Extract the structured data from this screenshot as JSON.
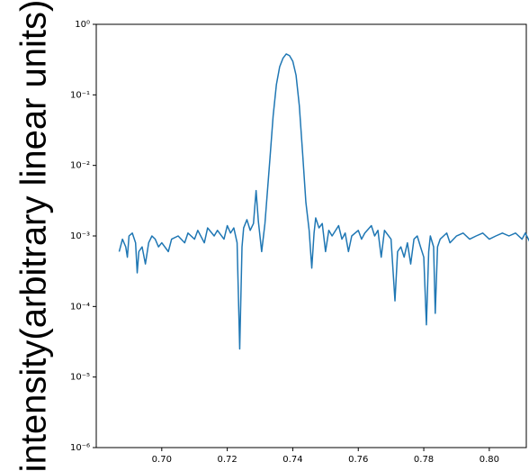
{
  "chart_data": {
    "type": "line",
    "y_label": "intensity(arbitrary linear units)",
    "log_y": true,
    "color": "#1f77b4",
    "xlim": [
      0.68,
      0.8113
    ],
    "ylim": [
      1e-06,
      1
    ],
    "xticks": [
      {
        "value": 0.7,
        "label": "0.70"
      },
      0.72,
      0.74,
      0.76,
      0.78,
      {
        "value": 0.8,
        "label": "0.80"
      }
    ],
    "yticks": [
      {
        "value": 1e-06,
        "label": "10⁻⁶"
      },
      {
        "value": 1e-05,
        "label": "10⁻⁵"
      },
      {
        "value": 0.0001,
        "label": "10⁻⁴"
      },
      {
        "value": 0.001,
        "label": "10⁻³"
      },
      {
        "value": 0.01,
        "label": "10⁻²"
      },
      {
        "value": 0.1,
        "label": "10⁻¹"
      },
      {
        "value": 1,
        "label": "10⁰"
      }
    ],
    "x": [
      0.687,
      0.688,
      0.689,
      0.6895,
      0.69,
      0.691,
      0.692,
      0.6925,
      0.693,
      0.694,
      0.695,
      0.696,
      0.697,
      0.698,
      0.699,
      0.7,
      0.702,
      0.703,
      0.705,
      0.707,
      0.708,
      0.71,
      0.711,
      0.713,
      0.714,
      0.716,
      0.717,
      0.719,
      0.72,
      0.721,
      0.722,
      0.723,
      0.7238,
      0.7245,
      0.725,
      0.726,
      0.727,
      0.728,
      0.7288,
      0.7295,
      0.7305,
      0.7315,
      0.733,
      0.734,
      0.735,
      0.736,
      0.737,
      0.738,
      0.739,
      0.74,
      0.741,
      0.742,
      0.743,
      0.744,
      0.745,
      0.7458,
      0.7465,
      0.747,
      0.748,
      0.749,
      0.75,
      0.751,
      0.752,
      0.754,
      0.755,
      0.756,
      0.757,
      0.758,
      0.76,
      0.761,
      0.762,
      0.764,
      0.765,
      0.766,
      0.767,
      0.768,
      0.77,
      0.7712,
      0.772,
      0.773,
      0.774,
      0.775,
      0.776,
      0.777,
      0.778,
      0.779,
      0.78,
      0.7808,
      0.7815,
      0.782,
      0.783,
      0.7835,
      0.7842,
      0.785,
      0.787,
      0.788,
      0.79,
      0.792,
      0.794,
      0.796,
      0.798,
      0.8,
      0.802,
      0.804,
      0.806,
      0.808,
      0.81,
      0.811,
      0.8125
    ],
    "values": [
      0.0006,
      0.0009,
      0.0007,
      0.0005,
      0.001,
      0.0011,
      0.0008,
      0.0003,
      0.0006,
      0.0007,
      0.0004,
      0.0008,
      0.001,
      0.0009,
      0.0007,
      0.0008,
      0.0006,
      0.0009,
      0.001,
      0.0008,
      0.0011,
      0.0009,
      0.0012,
      0.0008,
      0.0013,
      0.001,
      0.0012,
      0.0009,
      0.0014,
      0.0011,
      0.0013,
      0.0008,
      2.5e-05,
      0.0007,
      0.0013,
      0.0017,
      0.0012,
      0.0015,
      0.0044,
      0.0016,
      0.0006,
      0.0015,
      0.012,
      0.05,
      0.14,
      0.25,
      0.33,
      0.38,
      0.36,
      0.3,
      0.19,
      0.07,
      0.015,
      0.003,
      0.0012,
      0.00035,
      0.0011,
      0.0018,
      0.0013,
      0.0015,
      0.0006,
      0.0012,
      0.001,
      0.0014,
      0.0009,
      0.0011,
      0.0006,
      0.001,
      0.0012,
      0.0009,
      0.0011,
      0.0014,
      0.001,
      0.0012,
      0.0005,
      0.0012,
      0.0009,
      0.00012,
      0.0006,
      0.0007,
      0.0005,
      0.0008,
      0.0004,
      0.0009,
      0.001,
      0.0007,
      0.0005,
      5.5e-05,
      0.0006,
      0.001,
      0.0007,
      8e-05,
      0.0007,
      0.0009,
      0.0011,
      0.0008,
      0.001,
      0.0011,
      0.0009,
      0.001,
      0.0011,
      0.0009,
      0.001,
      0.0011,
      0.001,
      0.0011,
      0.0009,
      0.0011,
      0.0008
    ]
  }
}
